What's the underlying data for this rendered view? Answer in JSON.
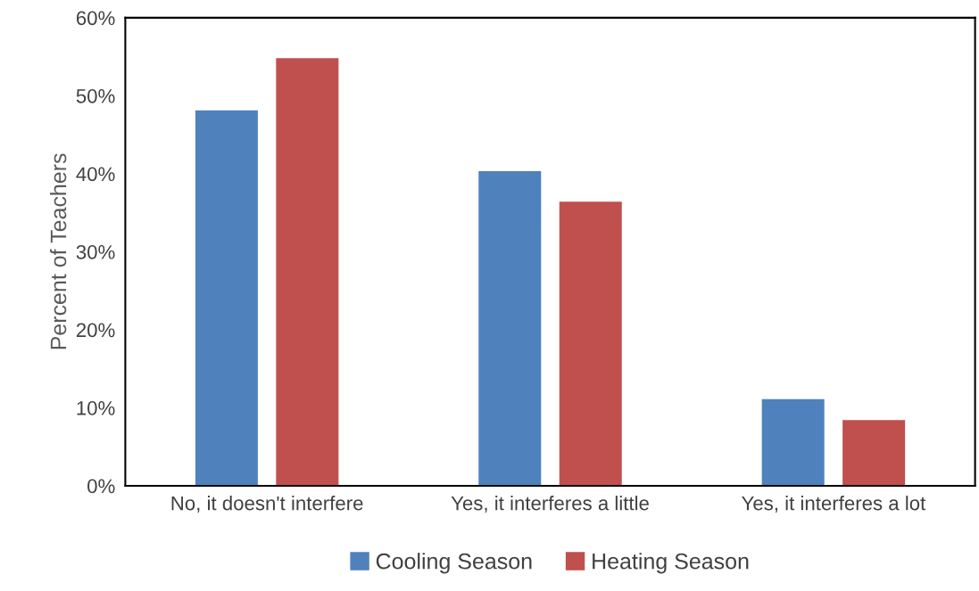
{
  "chart_data": {
    "type": "bar",
    "ylabel": "Percent of Teachers",
    "categories": [
      "No, it doesn't interfere",
      "Yes, it interferes a little",
      "Yes, it interferes a lot"
    ],
    "series": [
      {
        "name": "Cooling Season",
        "color": "#4f81bd",
        "values": [
          48.2,
          40.4,
          11.2
        ]
      },
      {
        "name": "Heating Season",
        "color": "#c0504d",
        "values": [
          54.9,
          36.5,
          8.5
        ]
      }
    ],
    "ylim": [
      0,
      60
    ],
    "yticks": [
      {
        "value": 0,
        "label": "0%"
      },
      {
        "value": 10,
        "label": "10%"
      },
      {
        "value": 20,
        "label": "20%"
      },
      {
        "value": 30,
        "label": "30%"
      },
      {
        "value": 40,
        "label": "40%"
      },
      {
        "value": 50,
        "label": "50%"
      },
      {
        "value": 60,
        "label": "60%"
      }
    ],
    "grid": false,
    "legend": "bottom"
  }
}
